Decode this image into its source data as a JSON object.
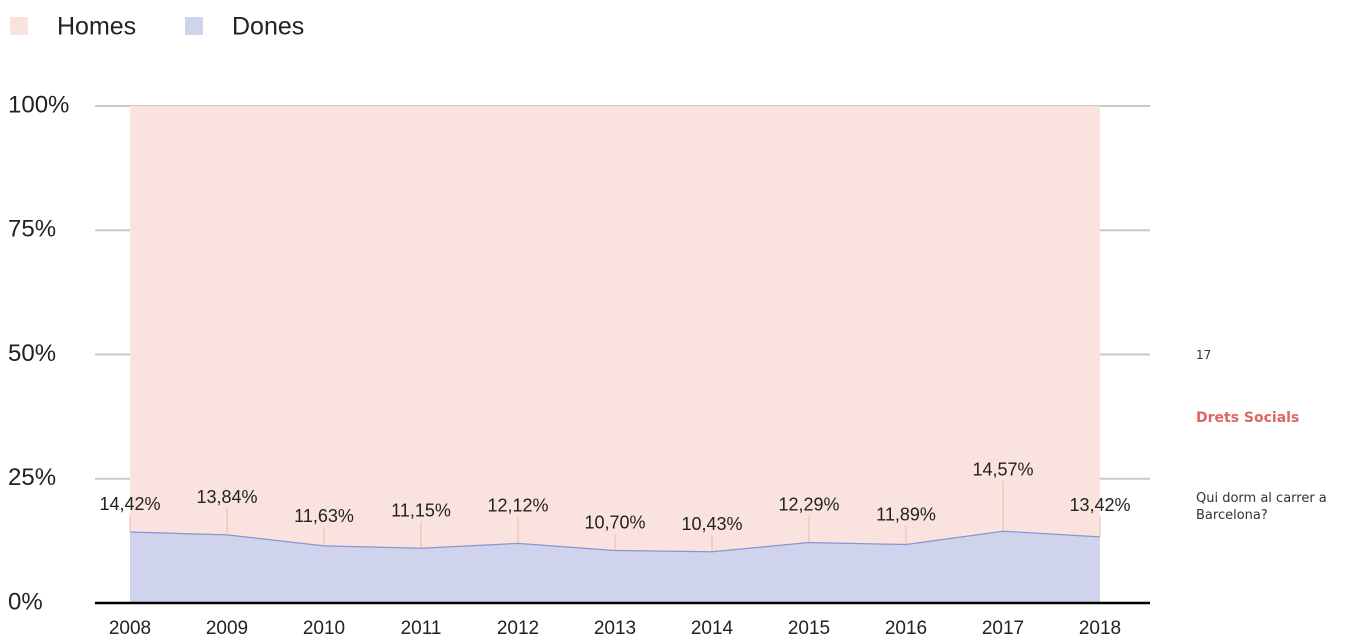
{
  "chart_data": {
    "type": "stacked_area",
    "categories": [
      "2008",
      "2009",
      "2010",
      "2011",
      "2012",
      "2013",
      "2014",
      "2015",
      "2016",
      "2017",
      "2018"
    ],
    "series": [
      {
        "name": "Homes",
        "color": "#fae3de",
        "values": [
          85.58,
          86.16,
          88.37,
          88.85,
          87.88,
          89.3,
          89.57,
          87.71,
          88.11,
          85.43,
          86.58
        ]
      },
      {
        "name": "Dones",
        "color": "#cfd3ec",
        "line_color": "#8796d0",
        "values": [
          14.42,
          13.84,
          11.63,
          11.15,
          12.12,
          10.7,
          10.43,
          12.29,
          11.89,
          14.57,
          13.42
        ],
        "value_labels": [
          "14,42%",
          "13,84%",
          "11,63%",
          "11,15%",
          "12,12%",
          "10,70%",
          "10,43%",
          "12,29%",
          "11,89%",
          "14,57%",
          "13,42%"
        ]
      }
    ],
    "ylim": [
      0,
      100
    ],
    "yticks": [
      {
        "value": 0,
        "label": "0%"
      },
      {
        "value": 25,
        "label": "25%"
      },
      {
        "value": 50,
        "label": "50%"
      },
      {
        "value": 75,
        "label": "75%"
      },
      {
        "value": 100,
        "label": "100%"
      }
    ],
    "grid": true,
    "legend": "top-left"
  },
  "sidebar": {
    "page_number": "17",
    "section": "Drets Socials",
    "subtitle": "Qui dorm al carrer a Barcelona?"
  }
}
